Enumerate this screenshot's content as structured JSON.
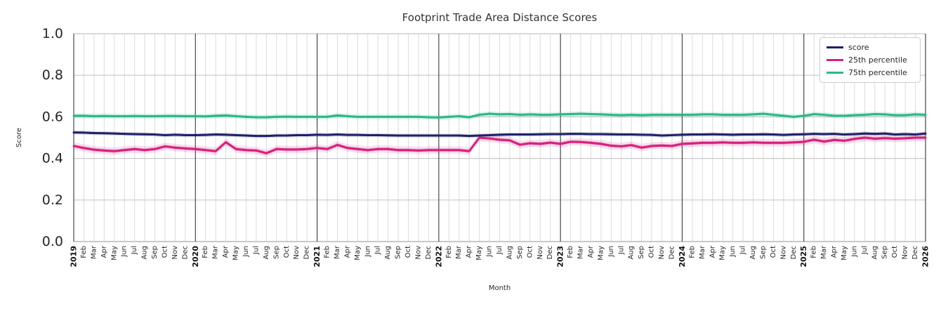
{
  "chart_data": {
    "type": "line",
    "title": "Footprint Trade Area Distance Scores",
    "xlabel": "Month",
    "ylabel": "Score",
    "ylim": [
      0.0,
      1.0
    ],
    "yticks": [
      0.0,
      0.2,
      0.4,
      0.6,
      0.8,
      1.0
    ],
    "grid": true,
    "legend_position": "upper right",
    "x_tick_labels": [
      "2019",
      "Feb",
      "Mar",
      "Apr",
      "May",
      "Jun",
      "Jul",
      "Aug",
      "Sep",
      "Oct",
      "Nov",
      "Dec",
      "2020",
      "Feb",
      "Mar",
      "Apr",
      "May",
      "Jun",
      "Jul",
      "Aug",
      "Sep",
      "Oct",
      "Nov",
      "Dec",
      "2021",
      "Feb",
      "Mar",
      "Apr",
      "May",
      "Jun",
      "Jul",
      "Aug",
      "Sep",
      "Oct",
      "Nov",
      "Dec",
      "2022",
      "Feb",
      "Mar",
      "Apr",
      "May",
      "Jun",
      "Jul",
      "Aug",
      "Sep",
      "Oct",
      "Nov",
      "Dec",
      "2023",
      "Feb",
      "Mar",
      "Apr",
      "May",
      "Jun",
      "Jul",
      "Aug",
      "Sep",
      "Oct",
      "Nov",
      "Dec",
      "2024",
      "Feb",
      "Mar",
      "Apr",
      "May",
      "Jun",
      "Jul",
      "Aug",
      "Sep",
      "Oct",
      "Nov",
      "Dec",
      "2025",
      "Feb",
      "Mar",
      "Apr",
      "May",
      "Jun",
      "Jul",
      "Aug",
      "Sep",
      "Oct",
      "Nov",
      "Dec",
      "2026"
    ],
    "year_tick_indices": [
      0,
      12,
      24,
      36,
      48,
      60,
      72,
      84
    ],
    "series": [
      {
        "name": "score",
        "color": "#1d2166",
        "band_inner": 0.005,
        "band_outer": 0.01,
        "values": [
          0.525,
          0.524,
          0.522,
          0.521,
          0.52,
          0.518,
          0.517,
          0.516,
          0.515,
          0.512,
          0.514,
          0.512,
          0.512,
          0.513,
          0.515,
          0.514,
          0.512,
          0.51,
          0.508,
          0.508,
          0.51,
          0.51,
          0.512,
          0.512,
          0.514,
          0.513,
          0.515,
          0.513,
          0.513,
          0.512,
          0.512,
          0.511,
          0.51,
          0.51,
          0.51,
          0.51,
          0.51,
          0.51,
          0.51,
          0.508,
          0.51,
          0.512,
          0.514,
          0.515,
          0.515,
          0.515,
          0.516,
          0.517,
          0.517,
          0.518,
          0.518,
          0.517,
          0.517,
          0.516,
          0.515,
          0.515,
          0.514,
          0.513,
          0.51,
          0.512,
          0.514,
          0.515,
          0.515,
          0.516,
          0.515,
          0.514,
          0.515,
          0.515,
          0.516,
          0.515,
          0.513,
          0.515,
          0.516,
          0.518,
          0.517,
          0.518,
          0.515,
          0.517,
          0.52,
          0.518,
          0.52,
          0.515,
          0.517,
          0.515,
          0.52
        ]
      },
      {
        "name": "25th percentile",
        "color": "#d6217d",
        "band_inner": 0.008,
        "band_outer": 0.018,
        "values": [
          0.46,
          0.45,
          0.442,
          0.438,
          0.435,
          0.44,
          0.445,
          0.44,
          0.445,
          0.458,
          0.452,
          0.448,
          0.445,
          0.44,
          0.435,
          0.478,
          0.445,
          0.44,
          0.438,
          0.425,
          0.445,
          0.443,
          0.443,
          0.445,
          0.45,
          0.445,
          0.465,
          0.45,
          0.445,
          0.44,
          0.445,
          0.445,
          0.44,
          0.44,
          0.438,
          0.44,
          0.44,
          0.44,
          0.44,
          0.435,
          0.5,
          0.496,
          0.49,
          0.487,
          0.466,
          0.473,
          0.47,
          0.476,
          0.47,
          0.48,
          0.479,
          0.475,
          0.47,
          0.461,
          0.458,
          0.464,
          0.452,
          0.46,
          0.462,
          0.46,
          0.47,
          0.472,
          0.475,
          0.475,
          0.477,
          0.475,
          0.475,
          0.477,
          0.475,
          0.475,
          0.475,
          0.477,
          0.48,
          0.49,
          0.481,
          0.489,
          0.485,
          0.494,
          0.5,
          0.495,
          0.498,
          0.495,
          0.497,
          0.5,
          0.5
        ]
      },
      {
        "name": "75th percentile",
        "color": "#2bb886",
        "band_inner": 0.006,
        "band_outer": 0.013,
        "values": [
          0.605,
          0.605,
          0.603,
          0.604,
          0.603,
          0.603,
          0.604,
          0.603,
          0.603,
          0.604,
          0.604,
          0.603,
          0.603,
          0.602,
          0.605,
          0.607,
          0.603,
          0.6,
          0.598,
          0.598,
          0.6,
          0.601,
          0.6,
          0.6,
          0.6,
          0.6,
          0.607,
          0.603,
          0.6,
          0.6,
          0.6,
          0.6,
          0.6,
          0.6,
          0.6,
          0.598,
          0.597,
          0.6,
          0.603,
          0.598,
          0.61,
          0.615,
          0.612,
          0.613,
          0.61,
          0.612,
          0.61,
          0.61,
          0.612,
          0.613,
          0.615,
          0.613,
          0.612,
          0.61,
          0.608,
          0.61,
          0.608,
          0.61,
          0.61,
          0.61,
          0.61,
          0.61,
          0.612,
          0.612,
          0.61,
          0.61,
          0.61,
          0.612,
          0.615,
          0.61,
          0.605,
          0.6,
          0.605,
          0.613,
          0.61,
          0.605,
          0.605,
          0.608,
          0.61,
          0.613,
          0.612,
          0.608,
          0.608,
          0.612,
          0.61
        ]
      }
    ]
  },
  "style_colors": {
    "year_line": "#3a3a3a",
    "month_grid": "#dcdcdc",
    "h_grid": "#c8c8c8",
    "spine": "#cccccc",
    "tick_label": "#262626"
  }
}
